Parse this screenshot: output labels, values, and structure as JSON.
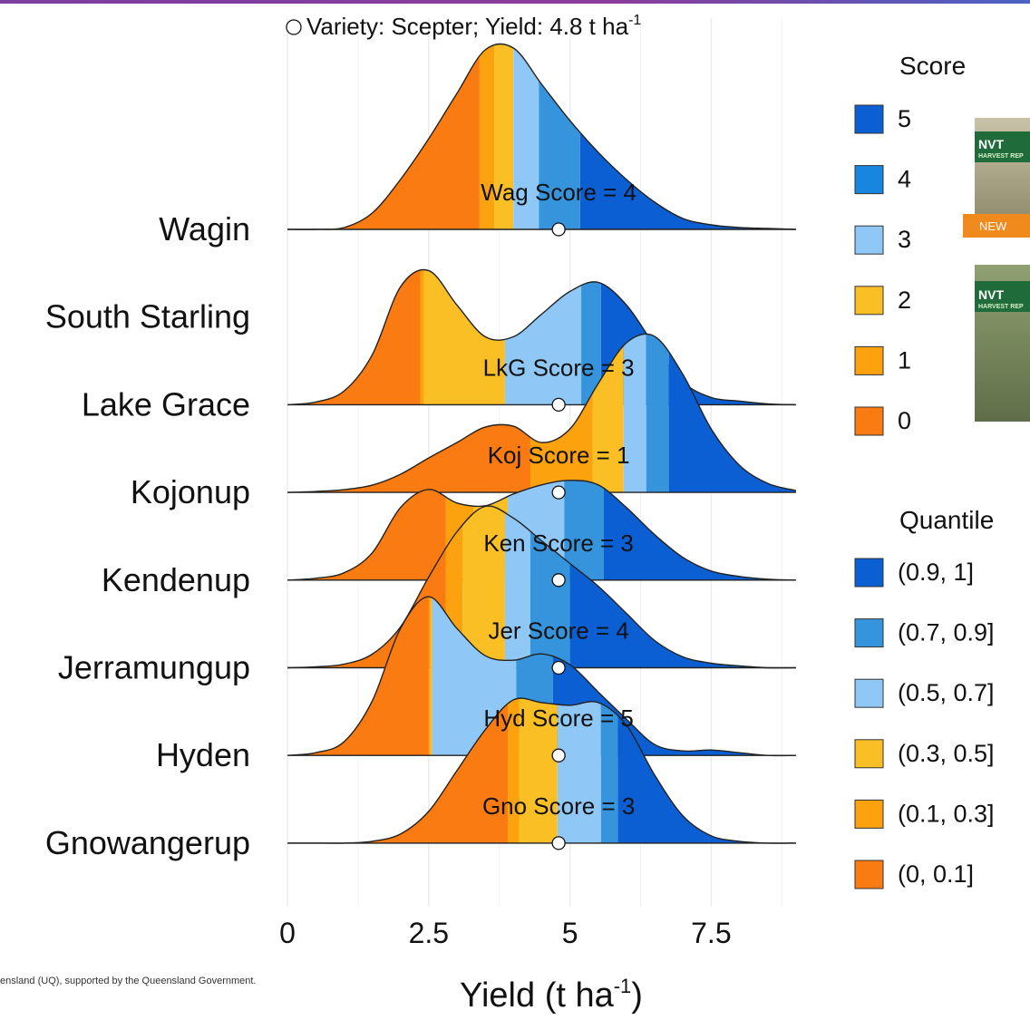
{
  "chart_data": {
    "type": "ridgeline",
    "title": "Variety: Scepter; Yield: 4.8 t ha",
    "title_sup": "-1",
    "xlabel": "Yield (t ha",
    "xlabel_sup": "-1",
    "xlabel_end": ")",
    "yield": 4.8,
    "xlim": [
      -0.45,
      9.5
    ],
    "xticks": [
      0,
      2.5,
      5,
      7.5
    ],
    "xminor": [
      1.25,
      3.75,
      6.25,
      8.75
    ],
    "grid": true,
    "x": [
      0,
      0.5,
      1,
      1.5,
      2,
      2.5,
      3,
      3.5,
      4,
      4.5,
      5,
      5.5,
      6,
      6.5,
      7,
      7.5,
      8,
      8.5,
      9
    ],
    "series": [
      {
        "name": "Wagin",
        "annotation": "Wag Score = 4",
        "quantile_breaks": [
          3.4,
          3.66,
          4.0,
          4.45,
          5.18
        ],
        "values": [
          0,
          0,
          0.002,
          0.018,
          0.055,
          0.1,
          0.15,
          0.198,
          0.2,
          0.16,
          0.12,
          0.085,
          0.055,
          0.03,
          0.012,
          0.005,
          0.002,
          0.001,
          0
        ]
      },
      {
        "name": "South Starling"
      },
      {
        "name": "Lake Grace",
        "annotation": "LkG Score = 3",
        "quantile_breaks": [
          2.35,
          2.42,
          3.85,
          5.2,
          5.55
        ],
        "values": [
          0,
          0.003,
          0.015,
          0.055,
          0.13,
          0.148,
          0.11,
          0.075,
          0.075,
          0.1,
          0.125,
          0.135,
          0.11,
          0.065,
          0.025,
          0.008,
          0.004,
          0.001,
          0
        ]
      },
      {
        "name": "Kojonup",
        "annotation": "Koj Score = 1",
        "quantile_breaks": [
          4.3,
          5.4,
          5.95,
          6.35,
          6.75
        ],
        "values": [
          0,
          0.001,
          0.003,
          0.008,
          0.02,
          0.038,
          0.055,
          0.072,
          0.073,
          0.055,
          0.07,
          0.12,
          0.165,
          0.172,
          0.13,
          0.07,
          0.03,
          0.01,
          0.002
        ]
      },
      {
        "name": "Kendenup",
        "annotation": "Ken Score = 3",
        "quantile_breaks": [
          2.8,
          3.3,
          3.9,
          4.9,
          5.6
        ],
        "values": [
          0,
          0.002,
          0.008,
          0.03,
          0.08,
          0.1,
          0.085,
          0.082,
          0.095,
          0.105,
          0.11,
          0.105,
          0.08,
          0.05,
          0.025,
          0.01,
          0.004,
          0.001,
          0
        ]
      },
      {
        "name": "Jerramungup",
        "annotation": "Jer Score = 4",
        "quantile_breaks": [
          2.8,
          3.1,
          3.85,
          4.3,
          5.0
        ],
        "values": [
          0,
          0.001,
          0.004,
          0.015,
          0.045,
          0.1,
          0.15,
          0.178,
          0.165,
          0.14,
          0.115,
          0.09,
          0.06,
          0.03,
          0.012,
          0.005,
          0.002,
          0,
          0
        ]
      },
      {
        "name": "Hyden",
        "annotation": "Hyd Score = 5",
        "quantile_breaks": [
          2.5,
          2.53,
          2.56,
          4.05,
          4.7
        ],
        "values": [
          0,
          0.003,
          0.015,
          0.06,
          0.14,
          0.175,
          0.14,
          0.11,
          0.105,
          0.112,
          0.1,
          0.07,
          0.04,
          0.012,
          0.005,
          0.006,
          0.003,
          0,
          0
        ]
      },
      {
        "name": "Gnowangerup",
        "annotation": "Gno Score = 3",
        "quantile_breaks": [
          3.9,
          4.1,
          4.78,
          5.55,
          5.85
        ],
        "values": [
          0,
          0,
          0,
          0.002,
          0.01,
          0.035,
          0.08,
          0.125,
          0.158,
          0.155,
          0.152,
          0.155,
          0.13,
          0.075,
          0.03,
          0.008,
          0.002,
          0,
          0
        ]
      }
    ],
    "score_legend": {
      "title": "Score",
      "labels": [
        "5",
        "4",
        "3",
        "2",
        "1",
        "0"
      ],
      "colors": [
        "#0b5fd2",
        "#1686e0",
        "#8fc8f7",
        "#fbbf26",
        "#fca20f",
        "#f97b12"
      ]
    },
    "quantile_legend": {
      "title": "Quantile",
      "labels": [
        "(0.9, 1]",
        "(0.7, 0.9]",
        "(0.5, 0.7]",
        "(0.3, 0.5]",
        "(0.1, 0.3]",
        "(0, 0.1]"
      ],
      "colors": [
        "#0b5fd2",
        "#3694dc",
        "#8fc8f7",
        "#fbbf26",
        "#fca20f",
        "#f97b12"
      ]
    }
  },
  "side_image": {
    "texts": [
      "NVT",
      "HARVEST REP",
      "NEW",
      "NVT",
      "HARVEST REP"
    ]
  },
  "footer": "ensland (UQ), supported by the Queensland Government."
}
